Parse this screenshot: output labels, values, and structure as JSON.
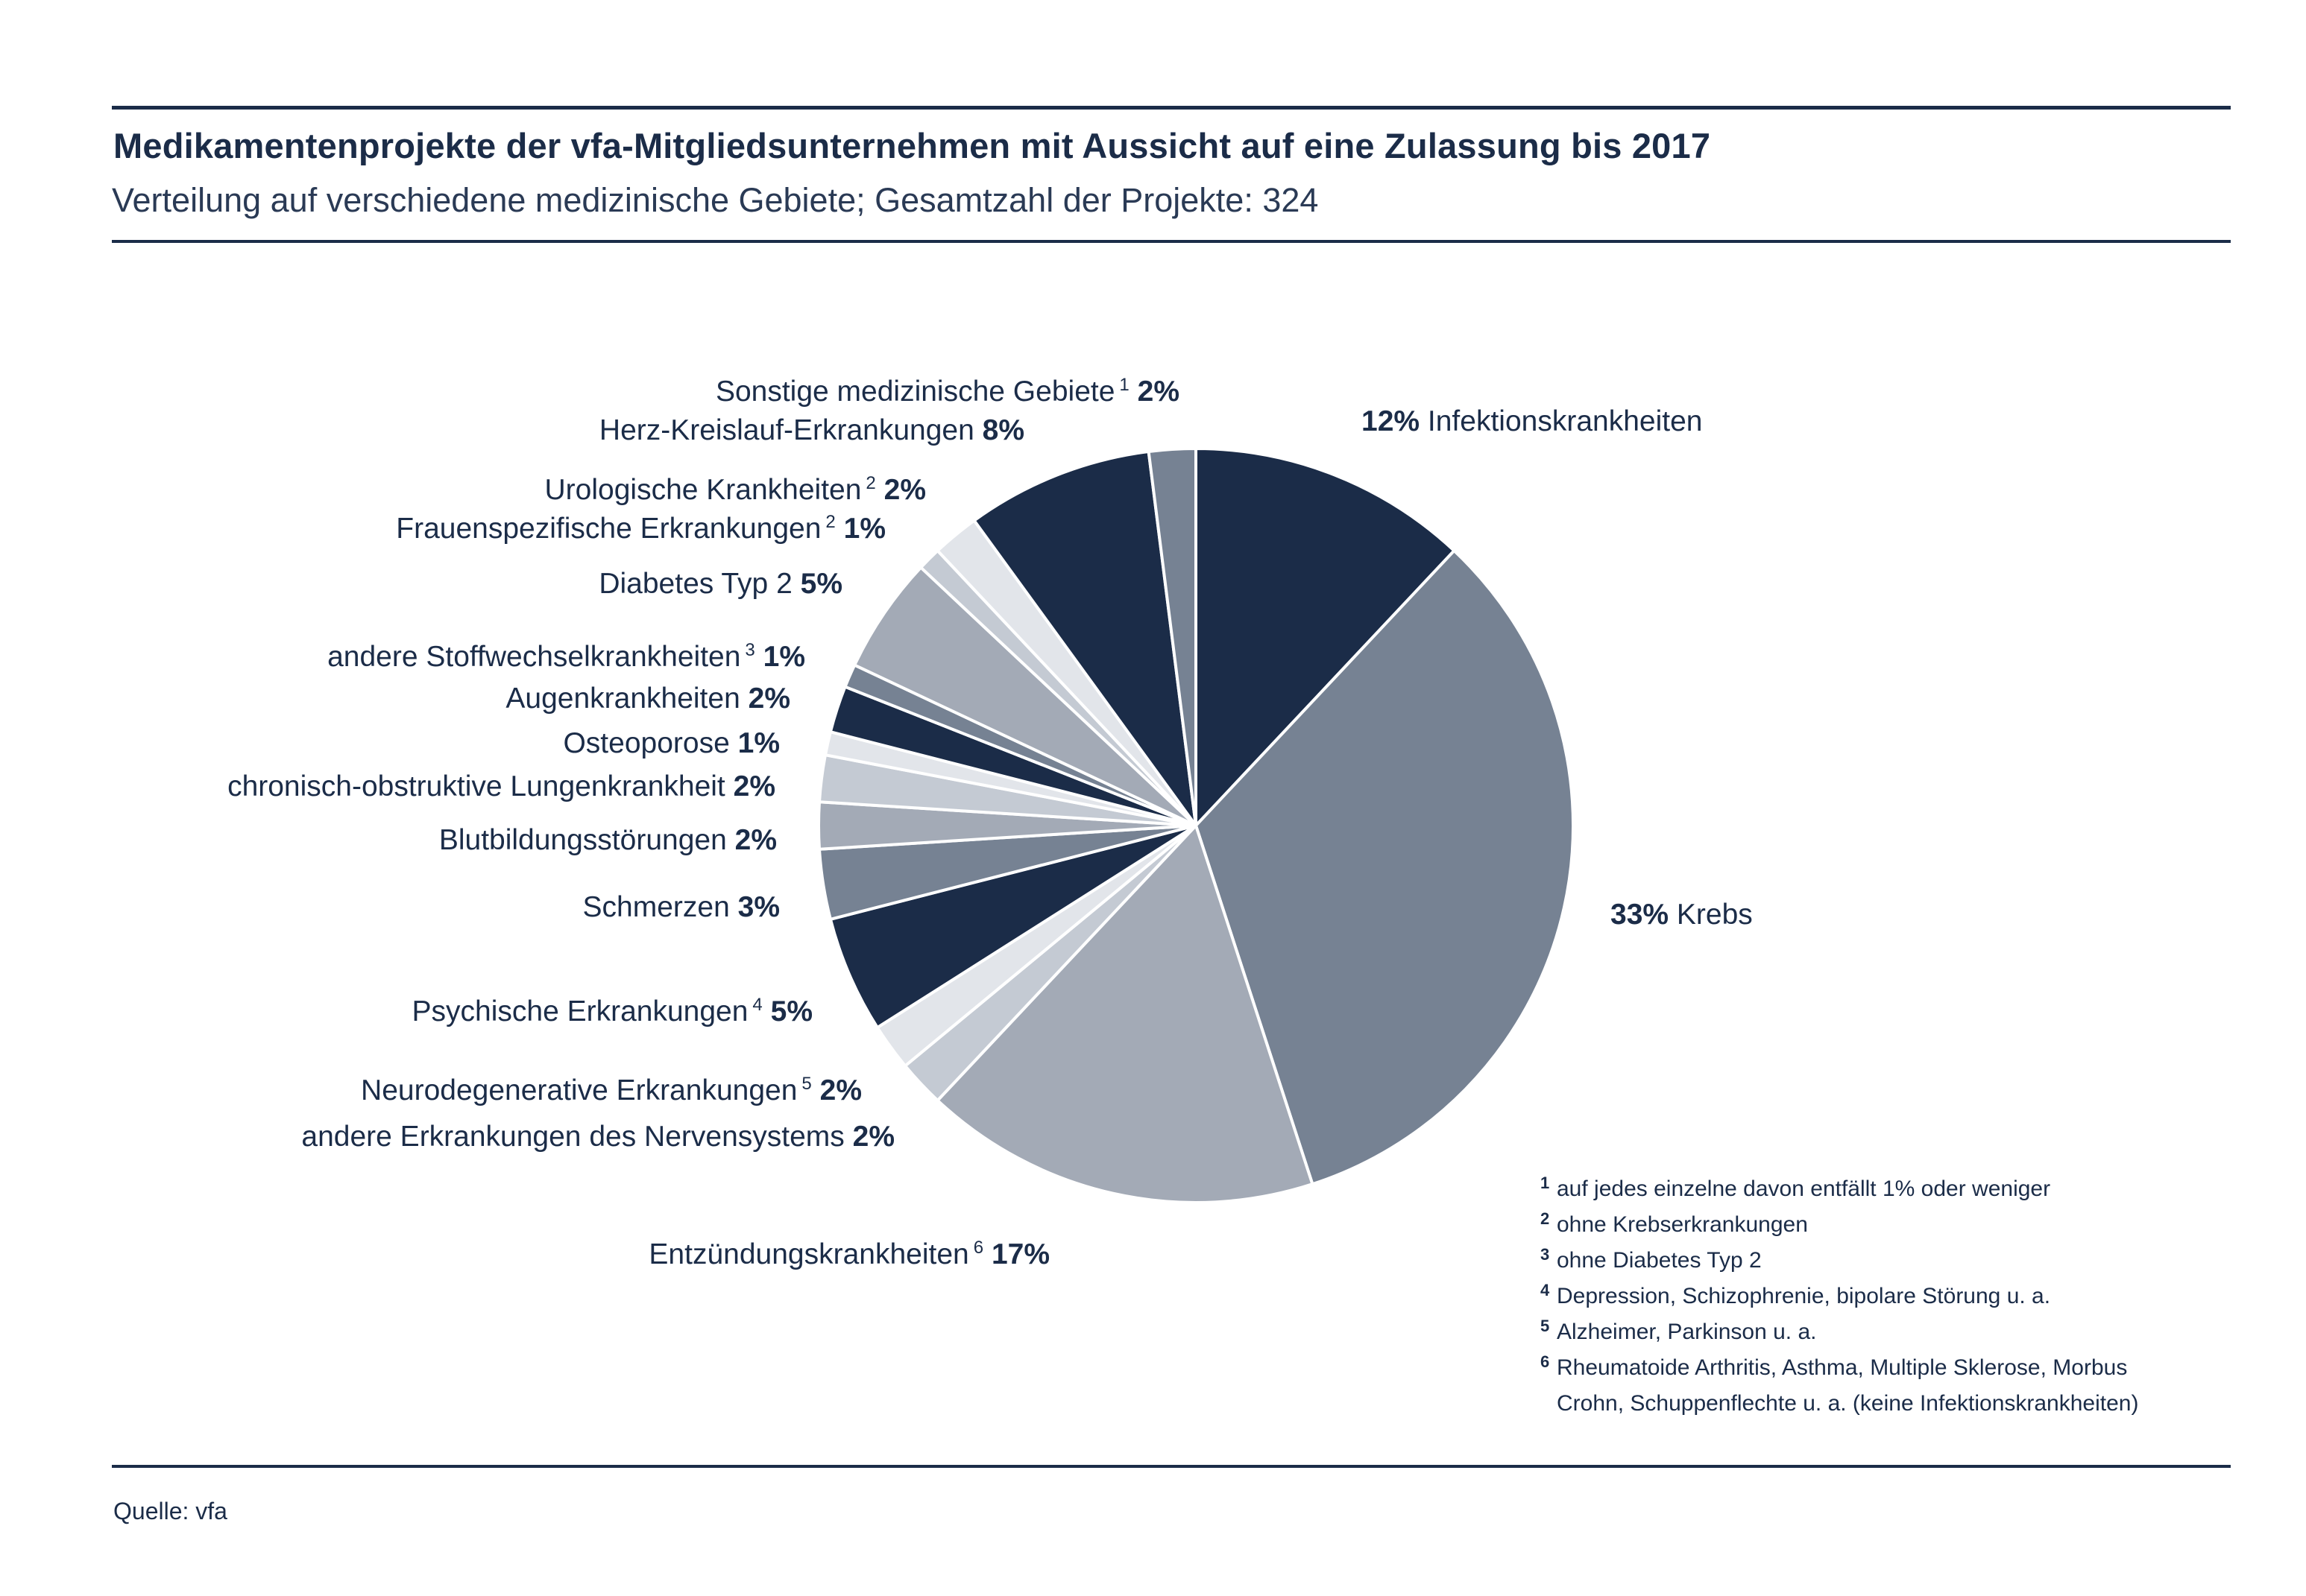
{
  "header": {
    "title": "Medikamentenprojekte der vfa-Mitgliedsunternehmen mit Aussicht auf eine Zulassung bis 2017",
    "subtitle": "Verteilung auf verschiedene medizinische Gebiete; Gesamtzahl der Projekte: 324"
  },
  "colors": {
    "navy": "#1b2c48",
    "slate": "#768293",
    "gray": "#a3aab6",
    "light": "#c4cad3",
    "pale": "#e2e5ea",
    "text": "#1b2c48"
  },
  "chart_data": {
    "type": "pie",
    "title": "Medikamentenprojekte der vfa-Mitgliedsunternehmen mit Aussicht auf eine Zulassung bis 2017",
    "subtitle": "Verteilung auf verschiedene medizinische Gebiete; Gesamtzahl der Projekte: 324",
    "start": "12 o'clock",
    "direction": "clockwise",
    "slices": [
      {
        "label": "Infektionskrankheiten",
        "sup": "",
        "value": 12,
        "pct": "12%",
        "color": "#1b2c48"
      },
      {
        "label": "Krebs",
        "sup": "",
        "value": 33,
        "pct": "33%",
        "color": "#768293"
      },
      {
        "label": "Entzündungskrankheiten",
        "sup": "6",
        "value": 17,
        "pct": "17%",
        "color": "#a3aab6"
      },
      {
        "label": "andere Erkrankungen des Nervensystems",
        "sup": "",
        "value": 2,
        "pct": "2%",
        "color": "#c4cad3"
      },
      {
        "label": "Neurodegenerative Erkrankungen",
        "sup": "5",
        "value": 2,
        "pct": "2%",
        "color": "#e2e5ea"
      },
      {
        "label": "Psychische Erkrankungen",
        "sup": "4",
        "value": 5,
        "pct": "5%",
        "color": "#1b2c48"
      },
      {
        "label": "Schmerzen",
        "sup": "",
        "value": 3,
        "pct": "3%",
        "color": "#768293"
      },
      {
        "label": "Blutbildungsstörungen",
        "sup": "",
        "value": 2,
        "pct": "2%",
        "color": "#a3aab6"
      },
      {
        "label": "chronisch-obstruktive Lungenkrankheit",
        "sup": "",
        "value": 2,
        "pct": "2%",
        "color": "#c4cad3"
      },
      {
        "label": "Osteoporose",
        "sup": "",
        "value": 1,
        "pct": "1%",
        "color": "#e2e5ea"
      },
      {
        "label": "Augenkrankheiten",
        "sup": "",
        "value": 2,
        "pct": "2%",
        "color": "#1b2c48"
      },
      {
        "label": "andere Stoffwechselkrankheiten",
        "sup": "3",
        "value": 1,
        "pct": "1%",
        "color": "#768293"
      },
      {
        "label": "Diabetes Typ 2",
        "sup": "",
        "value": 5,
        "pct": "5%",
        "color": "#a3aab6"
      },
      {
        "label": "Frauenspezifische Erkrankungen",
        "sup": "2",
        "value": 1,
        "pct": "1%",
        "color": "#c4cad3"
      },
      {
        "label": "Urologische Krankheiten",
        "sup": "2",
        "value": 2,
        "pct": "2%",
        "color": "#e2e5ea"
      },
      {
        "label": "Herz-Kreislauf-Erkrankungen",
        "sup": "",
        "value": 8,
        "pct": "8%",
        "color": "#1b2c48"
      },
      {
        "label": "Sonstige medizinische Gebiete",
        "sup": "1",
        "value": 2,
        "pct": "2%",
        "color": "#768293"
      }
    ]
  },
  "footnotes": [
    {
      "mark": "1",
      "text": "auf jedes einzelne davon entfällt 1% oder weniger"
    },
    {
      "mark": "2",
      "text": "ohne Krebserkrankungen"
    },
    {
      "mark": "3",
      "text": "ohne Diabetes Typ 2"
    },
    {
      "mark": "4",
      "text": "Depression, Schizophrenie, bipolare Störung u. a."
    },
    {
      "mark": "5",
      "text": "Alzheimer, Parkinson u. a."
    },
    {
      "mark": "6",
      "text": "Rheumatoide Arthritis, Asthma, Multiple Sklerose, Morbus\nCrohn, Schuppenflechte u. a. (keine Infektionskrankheiten)"
    }
  ],
  "source": "Quelle: vfa"
}
